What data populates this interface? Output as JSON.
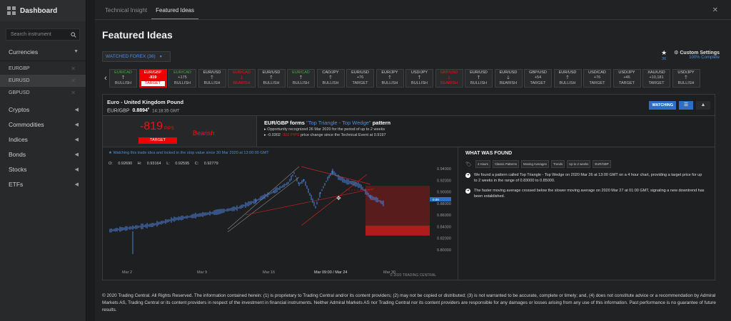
{
  "sidebar": {
    "dashboard": "Dashboard",
    "search_placeholder": "Search instrument",
    "sections": [
      {
        "label": "Currencies",
        "expanded": true
      },
      {
        "label": "Cryptos"
      },
      {
        "label": "Commodities"
      },
      {
        "label": "Indices"
      },
      {
        "label": "Bonds"
      },
      {
        "label": "Stocks"
      },
      {
        "label": "ETFs"
      }
    ],
    "pairs": [
      {
        "label": "EURGBP",
        "selected": false
      },
      {
        "label": "EURUSD",
        "selected": true
      },
      {
        "label": "GBPUSD",
        "selected": false
      }
    ]
  },
  "tabs": [
    {
      "label": "Technical Insight"
    },
    {
      "label": "Featured Ideas",
      "active": true
    }
  ],
  "page_title": "Featured Ideas",
  "watched_filter": "WATCHED FOREX (36)",
  "watch_count": "36",
  "custom_settings": {
    "label": "Custom Settings",
    "progress": "100% Complete"
  },
  "tickers": [
    {
      "pair": "EUR/CAD",
      "arrow": "up",
      "dir": "BULLISH",
      "color": "#3cb043"
    },
    {
      "pair": "EUR/GBP",
      "arrow": "",
      "price": "-819",
      "dir": "TARGET",
      "color": "#ffffff",
      "selected": true
    },
    {
      "pair": "EUR/CAD",
      "arrow": "",
      "price": "+175",
      "dir": "BULLISH",
      "color": "#3cb043"
    },
    {
      "pair": "EUR/USD",
      "arrow": "up",
      "dir": "BULLISH",
      "color": "#cfcfcf"
    },
    {
      "pair": "EUR/CAD",
      "arrow": "down",
      "dir": "BEARISH",
      "color": "#f01414"
    },
    {
      "pair": "EUR/USD",
      "arrow": "up",
      "dir": "BULLISH",
      "color": "#cfcfcf"
    },
    {
      "pair": "EUR/CAD",
      "arrow": "up",
      "dir": "BULLISH",
      "color": "#3cb043"
    },
    {
      "pair": "CAD/JPY",
      "arrow": "up",
      "dir": "BULLISH",
      "color": "#cfcfcf"
    },
    {
      "pair": "EUR/USD",
      "arrow": "",
      "price": "+76",
      "dir": "TARGET",
      "color": "#cfcfcf"
    },
    {
      "pair": "EUR/JPY",
      "arrow": "up",
      "dir": "BULLISH",
      "color": "#cfcfcf"
    },
    {
      "pair": "USD/JPY",
      "arrow": "up",
      "dir": "BULLISH",
      "color": "#cfcfcf"
    },
    {
      "pair": "GBP/USD",
      "arrow": "down",
      "dir": "BEARISH",
      "color": "#f01414"
    },
    {
      "pair": "EUR/USD",
      "arrow": "up",
      "dir": "BULLISH",
      "color": "#cfcfcf"
    },
    {
      "pair": "EUR/USD",
      "arrow": "down",
      "dir": "BEARISH",
      "color": "#cfcfcf"
    },
    {
      "pair": "GBP/USD",
      "arrow": "",
      "price": "+54",
      "dir": "TARGET",
      "color": "#cfcfcf"
    },
    {
      "pair": "EUR/USD",
      "arrow": "up",
      "dir": "BULLISH",
      "color": "#cfcfcf"
    },
    {
      "pair": "USD/CAD",
      "arrow": "",
      "price": "+76",
      "dir": "TARGET",
      "color": "#cfcfcf"
    },
    {
      "pair": "USD/JPY",
      "arrow": "",
      "price": "+46",
      "dir": "TARGET",
      "color": "#cfcfcf"
    },
    {
      "pair": "XAU/USD",
      "arrow": "",
      "price": "+10,181",
      "dir": "TARGET",
      "color": "#cfcfcf"
    },
    {
      "pair": "USD/JPY",
      "arrow": "up",
      "dir": "BULLISH",
      "color": "#cfcfcf"
    }
  ],
  "instrument": {
    "name": "Euro - United Kingdom Pound",
    "symbol": "EUR/GBP",
    "price": "0.8894",
    "price_suffix": "6",
    "time": "14:18:35 GMT"
  },
  "buttons": {
    "watching": "WATCHING"
  },
  "signal": {
    "pips": "-819",
    "pips_unit": "PIPS",
    "bias": "Bearish",
    "tag": "TARGET"
  },
  "pattern": {
    "title_pre": "EUR/GBP forms",
    "pattern_name": "\"Top Triangle - Top Wedge\"",
    "title_post": "pattern",
    "line1": "Opportunity recognized 26 Mar 2020 for the period of up to 2 weeks",
    "line2_pre": "-0.0302",
    "line2_mid": "price change since the Technical Event at 0.9197"
  },
  "chart_note": "Watching this trade idea and locked in the stop value since 30 Mar 2020 at 13:00:00 GMT",
  "ohlc": {
    "o": "O: 0.92690",
    "h": "H: 0.93164",
    "l": "L: 0.92595",
    "c": "C: 0.92779"
  },
  "chart_copyright": "© 2020 TRADING CENTRAL",
  "chart_data": {
    "type": "line",
    "y_ticks": [
      "0.94000",
      "0.92000",
      "0.90000",
      "0.88000",
      "0.86000",
      "0.84000",
      "0.82000",
      "0.80000"
    ],
    "ylim": [
      0.8,
      0.94
    ],
    "x_ticks": [
      "Mar 2",
      "Mar 9",
      "Mar 16",
      "Mar 30"
    ],
    "crosshair_label": "Mar 09:00 / Mar 24",
    "current_price": "0.89"
  },
  "found": {
    "title": "WHAT WAS FOUND",
    "tags": [
      "4 Hours",
      "Classic Patterns",
      "Moving Averages",
      "Trends",
      "Up to 2 weeks",
      "EUR/GBP"
    ],
    "items": [
      "We found a pattern called Top Triangle - Top Wedge on 2020 Mar 26 at 13:00 GMT on a 4 hour chart, providing a target price for up to 2 weeks in the range of 0.83000 to 0.85000.",
      "The faster moving average crossed below the slower moving average on 2020 Mar 27 at 01:00 GMT, signaling a new downtrend has been established."
    ]
  },
  "disclaimer": "© 2020 Trading Central. All Rights Reserved. The information contained herein: (1) is proprietary to Trading Central and/or its content providers; (2) may not be copied or distributed; (3) is not warranted to be accurate, complete or timely; and, (4) does not constitute advice or a recommendation by Admiral Markets AS, Trading Central or its content providers in respect of the investment in financial instruments. Neither Admiral Markets AS nor Trading Central nor its content providers are responsible for any damages or losses arising from any use of this information. Past performance is no guarantee of future results."
}
